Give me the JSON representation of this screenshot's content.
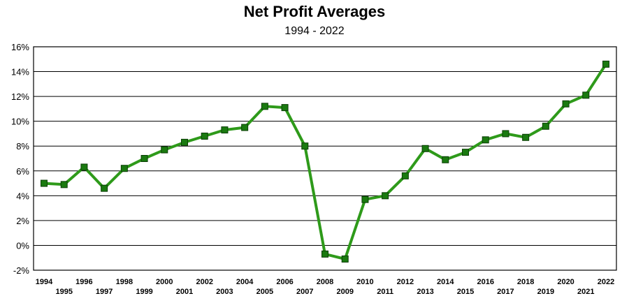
{
  "chart_data": {
    "type": "line",
    "title": "Net Profit Averages",
    "subtitle": "1994 - 2022",
    "xlabel": "",
    "ylabel": "",
    "x": [
      "1994",
      "1995",
      "1996",
      "1997",
      "1998",
      "1999",
      "2000",
      "2001",
      "2002",
      "2003",
      "2004",
      "2005",
      "2006",
      "2007",
      "2008",
      "2009",
      "2010",
      "2011",
      "2012",
      "2013",
      "2014",
      "2015",
      "2016",
      "2017",
      "2018",
      "2019",
      "2020",
      "2021",
      "2022"
    ],
    "series": [
      {
        "values": [
          5.0,
          4.9,
          6.3,
          4.6,
          6.2,
          7.0,
          7.7,
          8.3,
          8.8,
          9.3,
          9.5,
          11.2,
          11.1,
          8.0,
          -0.7,
          -1.1,
          3.7,
          4.0,
          5.6,
          7.8,
          6.9,
          7.5,
          8.5,
          9.0,
          8.7,
          9.6,
          11.4,
          12.1,
          14.6
        ]
      }
    ],
    "ylim": [
      -2,
      16
    ],
    "yticks": [
      "16%",
      "14%",
      "12%",
      "10%",
      "8%",
      "6%",
      "4%",
      "2%",
      "0%",
      "-2%"
    ],
    "grid": true,
    "line_color": "#2e9a1a",
    "marker_color": "#1a7a10"
  }
}
